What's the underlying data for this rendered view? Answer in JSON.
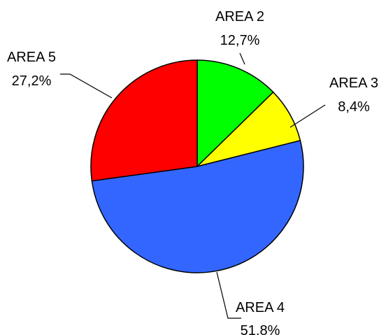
{
  "chart_data": {
    "type": "pie",
    "slices": [
      {
        "label": "AREA 2",
        "value_text": "12,7%",
        "value": 12.7,
        "color": "#00ff00"
      },
      {
        "label": "AREA 3",
        "value_text": "8,4%",
        "value": 8.4,
        "color": "#ffff00"
      },
      {
        "label": "AREA 4",
        "value_text": "51,8%",
        "value": 51.8,
        "color": "#3366ff"
      },
      {
        "label": "AREA 5",
        "value_text": "27,2%",
        "value": 27.2,
        "color": "#ff0000"
      }
    ],
    "start_angle_deg": 0,
    "direction": "clockwise",
    "legend": "none"
  }
}
